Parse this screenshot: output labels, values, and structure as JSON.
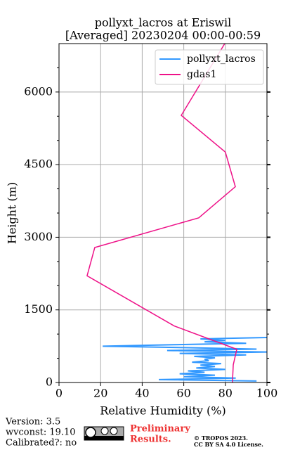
{
  "chart_data": {
    "type": "line",
    "title": [
      "pollyxt_lacros at Eriswil",
      "[Averaged] 20230204 00:00-00:59"
    ],
    "x_label": "Relative Humidity (%)",
    "y_label": "Height (m)",
    "xlim": [
      0,
      100
    ],
    "xticks": [
      0,
      20,
      40,
      60,
      80,
      100
    ],
    "ylim": [
      0,
      7000
    ],
    "yticks": [
      0,
      1500,
      3000,
      4500,
      6000
    ],
    "yticks_minor": [
      500,
      1000,
      2000,
      2500,
      3500,
      4000,
      5000,
      5500,
      6500
    ],
    "grid": true,
    "legend": "upper right",
    "series": [
      {
        "name": "pollyxt_lacros",
        "color": "#3399ff",
        "x": [
          95,
          48,
          85,
          60,
          75,
          58,
          70,
          62,
          80,
          66,
          75,
          68,
          78,
          64,
          72,
          70,
          75,
          65,
          90,
          58,
          100,
          52,
          95,
          60,
          21,
          55,
          90,
          70,
          80,
          68,
          100
        ],
        "y": [
          30,
          60,
          90,
          120,
          150,
          180,
          210,
          240,
          270,
          300,
          330,
          360,
          390,
          420,
          450,
          480,
          510,
          540,
          570,
          600,
          630,
          660,
          690,
          720,
          750,
          780,
          810,
          840,
          870,
          900,
          930
        ]
      },
      {
        "name": "gdas1",
        "color": "#ee1188",
        "x": [
          83.4,
          83.8,
          85.5,
          55.4,
          13.5,
          17.2,
          67.2,
          84.8,
          80,
          58.8,
          79.7
        ],
        "y": [
          0,
          365,
          686,
          1168,
          2204,
          2788,
          3401,
          4044,
          4759,
          5518,
          7000
        ]
      }
    ]
  },
  "footer": {
    "version": "Version: 3.5",
    "wvconst": "wvconst:  19.10",
    "calibrated": "Calibrated?: no",
    "notice": [
      "Preliminary",
      "Results."
    ],
    "copyright": [
      "© TROPOS 2023.",
      "CC BY SA 4.0 License."
    ]
  }
}
